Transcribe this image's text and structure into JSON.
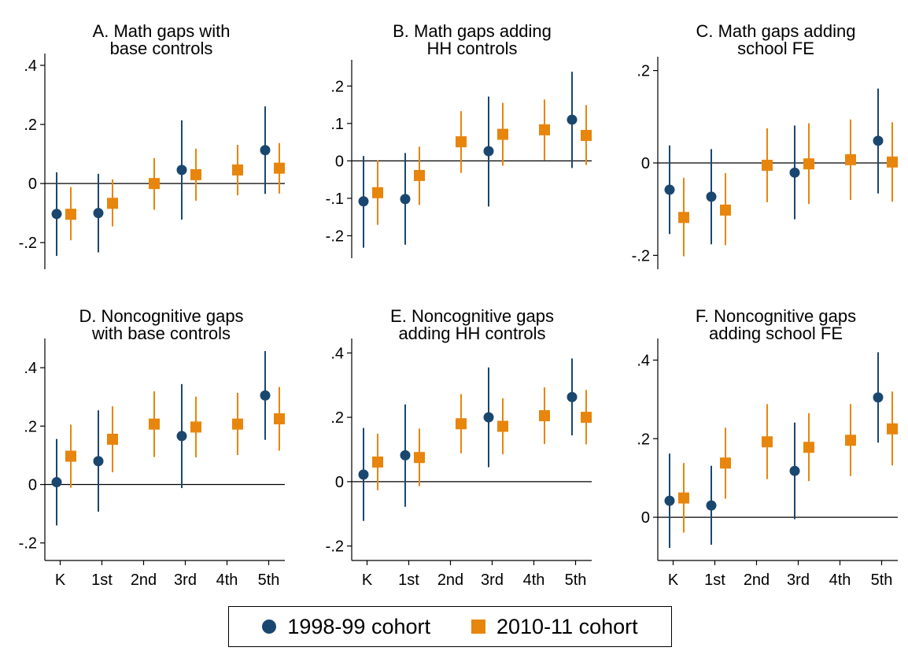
{
  "colors": {
    "cohort_1998": "#1a476f",
    "cohort_2010": "#e8850c"
  },
  "legend": {
    "label_1998": "1998-99 cohort",
    "label_2010": "2010-11 cohort"
  },
  "chart_data": [
    {
      "type": "scatter",
      "title": [
        "A. Math gaps with",
        "base controls"
      ],
      "categories": [
        "K",
        "1st",
        "2nd",
        "3rd",
        "4th",
        "5th"
      ],
      "show_x_ticklabels": false,
      "ylim": [
        -0.29,
        0.44
      ],
      "yticks": [
        -0.2,
        0,
        0.2,
        0.4
      ],
      "ytick_labels": [
        "-.2",
        "0",
        ".2",
        ".4"
      ],
      "series": [
        {
          "name": "1998-99 cohort",
          "marker": "circle",
          "points": [
            {
              "x": "K",
              "y": -0.103,
              "lo": -0.245,
              "hi": 0.038
            },
            {
              "x": "1st",
              "y": -0.1,
              "lo": -0.233,
              "hi": 0.033
            },
            {
              "x": "3rd",
              "y": 0.046,
              "lo": -0.122,
              "hi": 0.214
            },
            {
              "x": "5th",
              "y": 0.113,
              "lo": -0.035,
              "hi": 0.261
            }
          ]
        },
        {
          "name": "2010-11 cohort",
          "marker": "square",
          "points": [
            {
              "x": "K",
              "y": -0.104,
              "lo": -0.192,
              "hi": -0.012
            },
            {
              "x": "1st",
              "y": -0.067,
              "lo": -0.145,
              "hi": 0.014
            },
            {
              "x": "2nd",
              "y": 0.0,
              "lo": -0.089,
              "hi": 0.086
            },
            {
              "x": "3rd",
              "y": 0.03,
              "lo": -0.058,
              "hi": 0.118
            },
            {
              "x": "4th",
              "y": 0.046,
              "lo": -0.04,
              "hi": 0.131
            },
            {
              "x": "5th",
              "y": 0.052,
              "lo": -0.034,
              "hi": 0.137
            }
          ]
        }
      ]
    },
    {
      "type": "scatter",
      "title": [
        "B. Math gaps adding",
        "HH controls"
      ],
      "categories": [
        "K",
        "1st",
        "2nd",
        "3rd",
        "4th",
        "5th"
      ],
      "show_x_ticklabels": false,
      "ylim": [
        -0.26,
        0.27
      ],
      "yticks": [
        -0.2,
        -0.1,
        0,
        0.1,
        0.2
      ],
      "ytick_labels": [
        "-.2",
        "-.1",
        "0",
        ".1",
        ".2"
      ],
      "series": [
        {
          "name": "1998-99 cohort",
          "marker": "circle",
          "points": [
            {
              "x": "K",
              "y": -0.108,
              "lo": -0.232,
              "hi": 0.013
            },
            {
              "x": "1st",
              "y": -0.102,
              "lo": -0.224,
              "hi": 0.021
            },
            {
              "x": "3rd",
              "y": 0.026,
              "lo": -0.122,
              "hi": 0.172
            },
            {
              "x": "5th",
              "y": 0.11,
              "lo": -0.019,
              "hi": 0.238
            }
          ]
        },
        {
          "name": "2010-11 cohort",
          "marker": "square",
          "points": [
            {
              "x": "K",
              "y": -0.085,
              "lo": -0.171,
              "hi": 0.002
            },
            {
              "x": "1st",
              "y": -0.039,
              "lo": -0.118,
              "hi": 0.038
            },
            {
              "x": "2nd",
              "y": 0.051,
              "lo": -0.032,
              "hi": 0.133
            },
            {
              "x": "3rd",
              "y": 0.071,
              "lo": -0.013,
              "hi": 0.155
            },
            {
              "x": "4th",
              "y": 0.083,
              "lo": 0.002,
              "hi": 0.164
            },
            {
              "x": "5th",
              "y": 0.068,
              "lo": -0.011,
              "hi": 0.149
            }
          ]
        }
      ]
    },
    {
      "type": "scatter",
      "title": [
        "C. Math gaps adding",
        "school FE"
      ],
      "categories": [
        "K",
        "1st",
        "2nd",
        "3rd",
        "4th",
        "5th"
      ],
      "show_x_ticklabels": false,
      "ylim": [
        -0.23,
        0.23
      ],
      "yticks": [
        -0.2,
        0,
        0.2
      ],
      "ytick_labels": [
        "-.2",
        "0",
        ".2"
      ],
      "series": [
        {
          "name": "1998-99 cohort",
          "marker": "circle",
          "points": [
            {
              "x": "K",
              "y": -0.058,
              "lo": -0.154,
              "hi": 0.038
            },
            {
              "x": "1st",
              "y": -0.073,
              "lo": -0.176,
              "hi": 0.03
            },
            {
              "x": "3rd",
              "y": -0.021,
              "lo": -0.122,
              "hi": 0.081
            },
            {
              "x": "5th",
              "y": 0.048,
              "lo": -0.066,
              "hi": 0.161
            }
          ]
        },
        {
          "name": "2010-11 cohort",
          "marker": "square",
          "points": [
            {
              "x": "K",
              "y": -0.118,
              "lo": -0.202,
              "hi": -0.032
            },
            {
              "x": "1st",
              "y": -0.102,
              "lo": -0.178,
              "hi": -0.022
            },
            {
              "x": "2nd",
              "y": -0.005,
              "lo": -0.085,
              "hi": 0.075
            },
            {
              "x": "3rd",
              "y": -0.002,
              "lo": -0.089,
              "hi": 0.086
            },
            {
              "x": "4th",
              "y": 0.007,
              "lo": -0.08,
              "hi": 0.094
            },
            {
              "x": "5th",
              "y": 0.002,
              "lo": -0.084,
              "hi": 0.088
            }
          ]
        }
      ]
    },
    {
      "type": "scatter",
      "title": [
        "D. Noncognitive gaps",
        "with base controls"
      ],
      "categories": [
        "K",
        "1st",
        "2nd",
        "3rd",
        "4th",
        "5th"
      ],
      "show_x_ticklabels": true,
      "ylim": [
        -0.26,
        0.5
      ],
      "yticks": [
        -0.2,
        0,
        0.2,
        0.4
      ],
      "ytick_labels": [
        "-.2",
        "0",
        ".2",
        ".4"
      ],
      "series": [
        {
          "name": "1998-99 cohort",
          "marker": "circle",
          "points": [
            {
              "x": "K",
              "y": 0.008,
              "lo": -0.14,
              "hi": 0.156
            },
            {
              "x": "1st",
              "y": 0.08,
              "lo": -0.093,
              "hi": 0.254
            },
            {
              "x": "3rd",
              "y": 0.166,
              "lo": -0.012,
              "hi": 0.344
            },
            {
              "x": "5th",
              "y": 0.305,
              "lo": 0.153,
              "hi": 0.457
            }
          ]
        },
        {
          "name": "2010-11 cohort",
          "marker": "square",
          "points": [
            {
              "x": "K",
              "y": 0.097,
              "lo": -0.011,
              "hi": 0.205
            },
            {
              "x": "1st",
              "y": 0.155,
              "lo": 0.042,
              "hi": 0.268
            },
            {
              "x": "2nd",
              "y": 0.207,
              "lo": 0.094,
              "hi": 0.319
            },
            {
              "x": "3rd",
              "y": 0.197,
              "lo": 0.093,
              "hi": 0.301
            },
            {
              "x": "4th",
              "y": 0.207,
              "lo": 0.101,
              "hi": 0.314
            },
            {
              "x": "5th",
              "y": 0.225,
              "lo": 0.116,
              "hi": 0.334
            }
          ]
        }
      ]
    },
    {
      "type": "scatter",
      "title": [
        "E. Noncognitive gaps",
        "adding HH controls"
      ],
      "categories": [
        "K",
        "1st",
        "2nd",
        "3rd",
        "4th",
        "5th"
      ],
      "show_x_ticklabels": true,
      "ylim": [
        -0.245,
        0.445
      ],
      "yticks": [
        -0.2,
        0,
        0.2,
        0.4
      ],
      "ytick_labels": [
        "-.2",
        "0",
        ".2",
        ".4"
      ],
      "series": [
        {
          "name": "1998-99 cohort",
          "marker": "circle",
          "points": [
            {
              "x": "K",
              "y": 0.022,
              "lo": -0.122,
              "hi": 0.167
            },
            {
              "x": "1st",
              "y": 0.082,
              "lo": -0.078,
              "hi": 0.24
            },
            {
              "x": "3rd",
              "y": 0.2,
              "lo": 0.045,
              "hi": 0.355
            },
            {
              "x": "5th",
              "y": 0.263,
              "lo": 0.144,
              "hi": 0.383
            }
          ]
        },
        {
          "name": "2010-11 cohort",
          "marker": "square",
          "points": [
            {
              "x": "K",
              "y": 0.061,
              "lo": -0.027,
              "hi": 0.149
            },
            {
              "x": "1st",
              "y": 0.075,
              "lo": -0.014,
              "hi": 0.165
            },
            {
              "x": "2nd",
              "y": 0.18,
              "lo": 0.088,
              "hi": 0.272
            },
            {
              "x": "3rd",
              "y": 0.172,
              "lo": 0.085,
              "hi": 0.259
            },
            {
              "x": "4th",
              "y": 0.205,
              "lo": 0.117,
              "hi": 0.293
            },
            {
              "x": "5th",
              "y": 0.2,
              "lo": 0.116,
              "hi": 0.285
            }
          ]
        }
      ]
    },
    {
      "type": "scatter",
      "title": [
        "F. Noncognitive gaps",
        "adding school FE"
      ],
      "categories": [
        "K",
        "1st",
        "2nd",
        "3rd",
        "4th",
        "5th"
      ],
      "show_x_ticklabels": true,
      "ylim": [
        -0.11,
        0.455
      ],
      "yticks": [
        0,
        0.2,
        0.4
      ],
      "ytick_labels": [
        "0",
        ".2",
        ".4"
      ],
      "series": [
        {
          "name": "1998-99 cohort",
          "marker": "circle",
          "points": [
            {
              "x": "K",
              "y": 0.042,
              "lo": -0.078,
              "hi": 0.162
            },
            {
              "x": "1st",
              "y": 0.03,
              "lo": -0.07,
              "hi": 0.131
            },
            {
              "x": "3rd",
              "y": 0.118,
              "lo": -0.005,
              "hi": 0.241
            },
            {
              "x": "5th",
              "y": 0.305,
              "lo": 0.19,
              "hi": 0.42
            }
          ]
        },
        {
          "name": "2010-11 cohort",
          "marker": "square",
          "points": [
            {
              "x": "K",
              "y": 0.049,
              "lo": -0.039,
              "hi": 0.138
            },
            {
              "x": "1st",
              "y": 0.138,
              "lo": 0.047,
              "hi": 0.228
            },
            {
              "x": "2nd",
              "y": 0.192,
              "lo": 0.097,
              "hi": 0.288
            },
            {
              "x": "3rd",
              "y": 0.178,
              "lo": 0.092,
              "hi": 0.265
            },
            {
              "x": "4th",
              "y": 0.196,
              "lo": 0.105,
              "hi": 0.288
            },
            {
              "x": "5th",
              "y": 0.225,
              "lo": 0.132,
              "hi": 0.32
            }
          ]
        }
      ]
    }
  ]
}
